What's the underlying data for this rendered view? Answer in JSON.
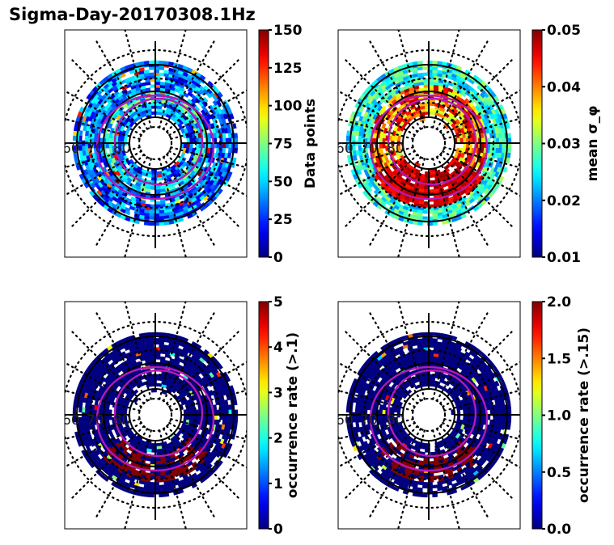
{
  "figure": {
    "title": "Sigma-Day-20170308.1Hz"
  },
  "chart_data": [
    {
      "type": "heatmap",
      "projection": "polar (magnetic latitude / MLT)",
      "title": "",
      "lat_ring_labels": [
        "60",
        "70",
        "80"
      ],
      "colormap": "jet",
      "colorbar": {
        "label": "Data points",
        "range": [
          0,
          150
        ],
        "ticks": [
          "0",
          "25",
          "50",
          "75",
          "100",
          "125",
          "150"
        ]
      },
      "dominant_values": "mostly 0-60, scattered 75-150",
      "seed": 11,
      "profile": "count"
    },
    {
      "type": "heatmap",
      "projection": "polar (magnetic latitude / MLT)",
      "title": "",
      "lat_ring_labels": [
        "60",
        "70",
        "80"
      ],
      "colormap": "jet",
      "colorbar": {
        "label": "mean σ_φ",
        "range": [
          0.01,
          0.05
        ],
        "ticks": [
          "0.01",
          "0.02",
          "0.03",
          "0.04",
          "0.05"
        ]
      },
      "dominant_values": "outer ring ~0.02-0.03, inner/night side ~0.04-0.05",
      "seed": 23,
      "profile": "sigma"
    },
    {
      "type": "heatmap",
      "projection": "polar (magnetic latitude / MLT)",
      "title": "",
      "lat_ring_labels": [
        "60",
        "70",
        "80"
      ],
      "colormap": "jet",
      "colorbar": {
        "label": "occurrence rate (>.1)",
        "range": [
          0,
          5
        ],
        "ticks": [
          "0",
          "1",
          "2",
          "3",
          "4",
          "5"
        ]
      },
      "dominant_values": "mostly 0, night-side band ~5",
      "seed": 37,
      "profile": "occ1"
    },
    {
      "type": "heatmap",
      "projection": "polar (magnetic latitude / MLT)",
      "title": "",
      "lat_ring_labels": [
        "60",
        "70",
        "80"
      ],
      "colormap": "jet",
      "colorbar": {
        "label": "occurrence rate (>.15)",
        "range": [
          0.0,
          2.0
        ],
        "ticks": [
          "0.0",
          "0.5",
          "1.0",
          "1.5",
          "2.0"
        ]
      },
      "dominant_values": "mostly 0, night-side band ~2",
      "seed": 53,
      "profile": "occ2"
    }
  ],
  "colors": {
    "oval": "#b41ab4",
    "grid": "#000000"
  }
}
